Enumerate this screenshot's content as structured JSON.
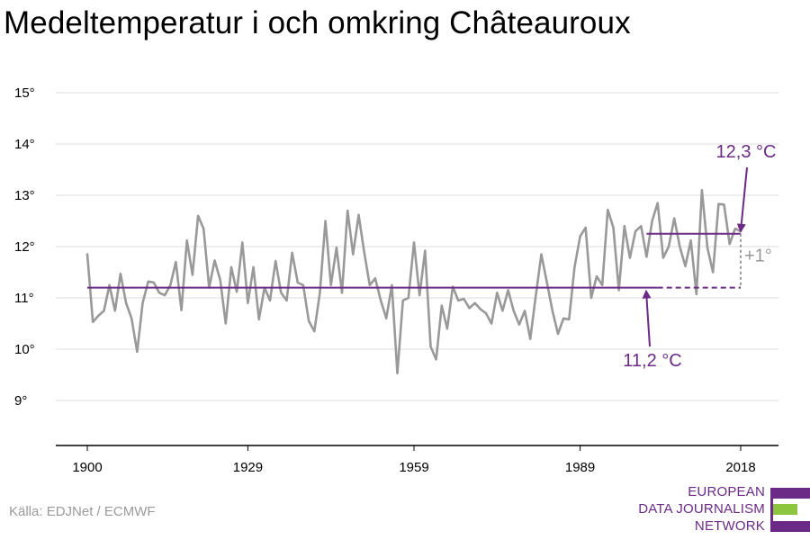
{
  "title": "Medeltemperatur i och omkring Châteauroux",
  "source": "Källa: EDJNet / ECMWF",
  "logo": {
    "lines": [
      "EUROPEAN",
      "DATA JOURNALISM",
      "NETWORK"
    ],
    "colors": [
      "#6b2a86",
      "#8cc63f",
      "#6b2a86"
    ]
  },
  "colors": {
    "series": "#999999",
    "accent": "#6b2a86",
    "grid": "#dddddd",
    "axis": "#000000",
    "delta": "#999999"
  },
  "chart_data": {
    "type": "line",
    "title": "Medeltemperatur i och omkring Châteauroux",
    "xlabel": "",
    "ylabel": "",
    "xlim": [
      1900,
      2018
    ],
    "ylim": [
      8,
      15.5
    ],
    "grid": true,
    "x_ticks": [
      1900,
      1929,
      1959,
      1989,
      2018
    ],
    "y_ticks": [
      9,
      10,
      11,
      12,
      13,
      14,
      15
    ],
    "y_tick_labels": [
      "9°",
      "10°",
      "11°",
      "12°",
      "13°",
      "14°",
      "15°"
    ],
    "series": [
      {
        "x": [
          1900,
          1901,
          1902,
          1903,
          1904,
          1905,
          1906,
          1907,
          1908,
          1909,
          1910,
          1911,
          1912,
          1913,
          1914,
          1915,
          1916,
          1917,
          1918,
          1919,
          1920,
          1921,
          1922,
          1923,
          1924,
          1925,
          1926,
          1927,
          1928,
          1929,
          1930,
          1931,
          1932,
          1933,
          1934,
          1935,
          1936,
          1937,
          1938,
          1939,
          1940,
          1941,
          1942,
          1943,
          1944,
          1945,
          1946,
          1947,
          1948,
          1949,
          1950,
          1951,
          1952,
          1953,
          1954,
          1955,
          1956,
          1957,
          1958,
          1959,
          1960,
          1961,
          1962,
          1963,
          1964,
          1965,
          1966,
          1967,
          1968,
          1969,
          1970,
          1971,
          1972,
          1973,
          1974,
          1975,
          1976,
          1977,
          1978,
          1979,
          1980,
          1981,
          1982,
          1983,
          1984,
          1985,
          1986,
          1987,
          1988,
          1989,
          1990,
          1991,
          1992,
          1993,
          1994,
          1995,
          1996,
          1997,
          1998,
          1999,
          2000,
          2001,
          2002,
          2003,
          2004,
          2005,
          2006,
          2007,
          2008,
          2009,
          2010,
          2011,
          2012,
          2013,
          2014,
          2015,
          2016,
          2017,
          2018
        ],
        "values": [
          11.85,
          10.53,
          10.65,
          10.75,
          11.25,
          10.75,
          11.47,
          10.9,
          10.6,
          9.95,
          10.9,
          11.32,
          11.3,
          11.1,
          11.05,
          11.25,
          11.7,
          10.76,
          12.12,
          11.45,
          12.6,
          12.35,
          11.2,
          11.73,
          11.35,
          10.5,
          11.6,
          11.12,
          12.08,
          10.9,
          11.6,
          10.58,
          11.2,
          10.95,
          11.72,
          11.1,
          10.95,
          11.88,
          11.3,
          11.25,
          10.55,
          10.35,
          11.1,
          12.5,
          11.25,
          11.98,
          11.1,
          12.7,
          11.85,
          12.62,
          11.9,
          11.25,
          11.38,
          10.95,
          10.6,
          11.25,
          9.53,
          10.95,
          11.0,
          12.08,
          11.05,
          11.92,
          10.05,
          9.8,
          10.85,
          10.4,
          11.22,
          10.95,
          10.98,
          10.8,
          10.9,
          10.78,
          10.7,
          10.5,
          11.1,
          10.75,
          11.15,
          10.75,
          10.48,
          10.75,
          10.2,
          11.05,
          11.85,
          11.3,
          10.75,
          10.3,
          10.6,
          10.58,
          11.6,
          12.2,
          12.37,
          11.0,
          11.42,
          11.25,
          12.72,
          12.37,
          11.15,
          12.4,
          11.78,
          12.3,
          12.4,
          11.8,
          12.5,
          12.85,
          11.78,
          12.0,
          12.55,
          12.0,
          11.62,
          12.12,
          11.07,
          13.1,
          11.97,
          11.5,
          12.83,
          12.82,
          12.05,
          12.35,
          12.3
        ]
      }
    ],
    "reference_lines": [
      {
        "from": 1900,
        "to": 2003,
        "extends_to": 2018,
        "value": 11.2,
        "label": "11,2 °C"
      },
      {
        "from": 2001,
        "to": 2018,
        "value": 12.25,
        "label": "12,3 °C"
      }
    ],
    "annotations": {
      "delta": "+1°"
    }
  }
}
